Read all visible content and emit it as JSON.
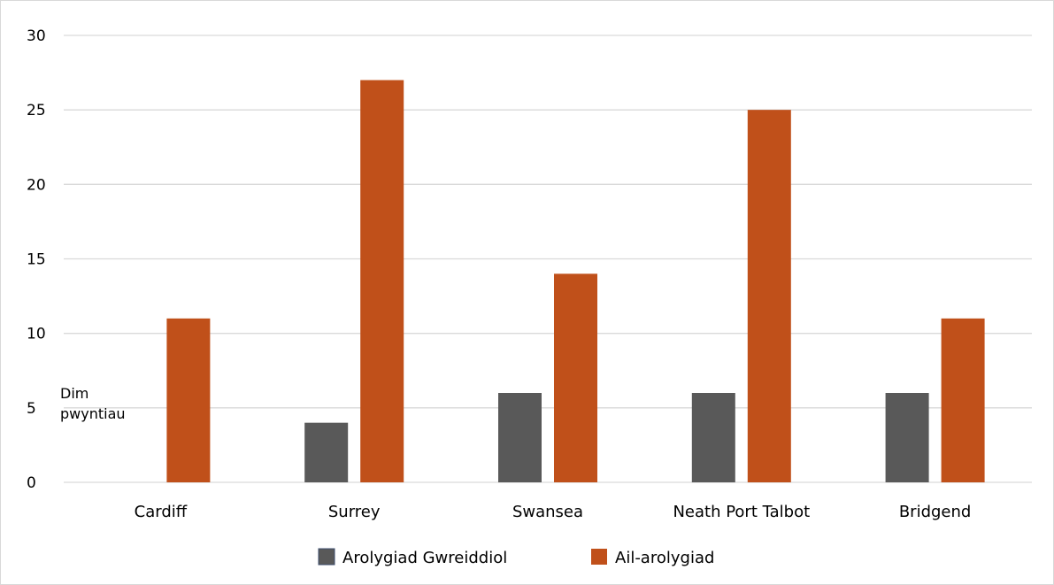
{
  "chart_data": {
    "type": "bar",
    "title": "",
    "xlabel": "",
    "ylabel": "",
    "categories": [
      "Cardiff",
      "Surrey",
      "Swansea",
      "Neath Port Talbot",
      "Bridgend"
    ],
    "series": [
      {
        "name": "Arolygiad Gwreiddiol",
        "values": [
          0,
          4,
          6,
          6,
          6
        ],
        "color": "#595959"
      },
      {
        "name": "Ail-arolygiad",
        "values": [
          11,
          27,
          14,
          25,
          11
        ],
        "color": "#c0501a"
      }
    ],
    "ylim": [
      0,
      30
    ],
    "yticks": [
      "0",
      "5",
      "10",
      "15",
      "20",
      "25",
      "30"
    ],
    "grid": true,
    "legend_position": "bottom",
    "annotations": [
      {
        "category": "Cardiff",
        "series": "Arolygiad Gwreiddiol",
        "lines": [
          "Dim",
          "pwyntiau"
        ]
      }
    ]
  }
}
